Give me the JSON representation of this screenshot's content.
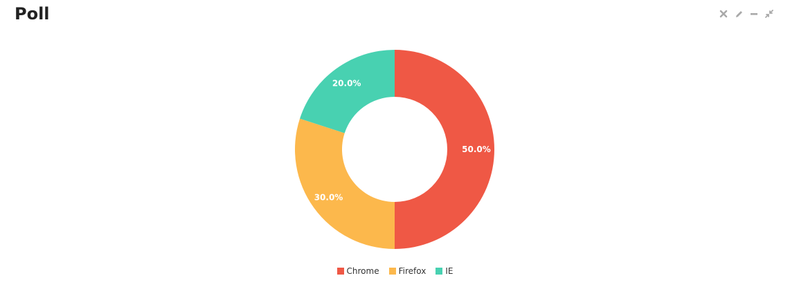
{
  "panel": {
    "title": "Poll",
    "controls": [
      {
        "name": "close-icon"
      },
      {
        "name": "pencil-icon"
      },
      {
        "name": "minimize-icon"
      },
      {
        "name": "compress-icon"
      }
    ]
  },
  "chart_data": {
    "type": "pie",
    "donut": true,
    "categories": [
      "Chrome",
      "Firefox",
      "IE"
    ],
    "values": [
      50.0,
      30.0,
      20.0
    ],
    "labels": [
      "50.0%",
      "30.0%",
      "20.0%"
    ],
    "colors": [
      "#EF5845",
      "#FCB84C",
      "#48D1B1"
    ],
    "legend_position": "bottom"
  }
}
